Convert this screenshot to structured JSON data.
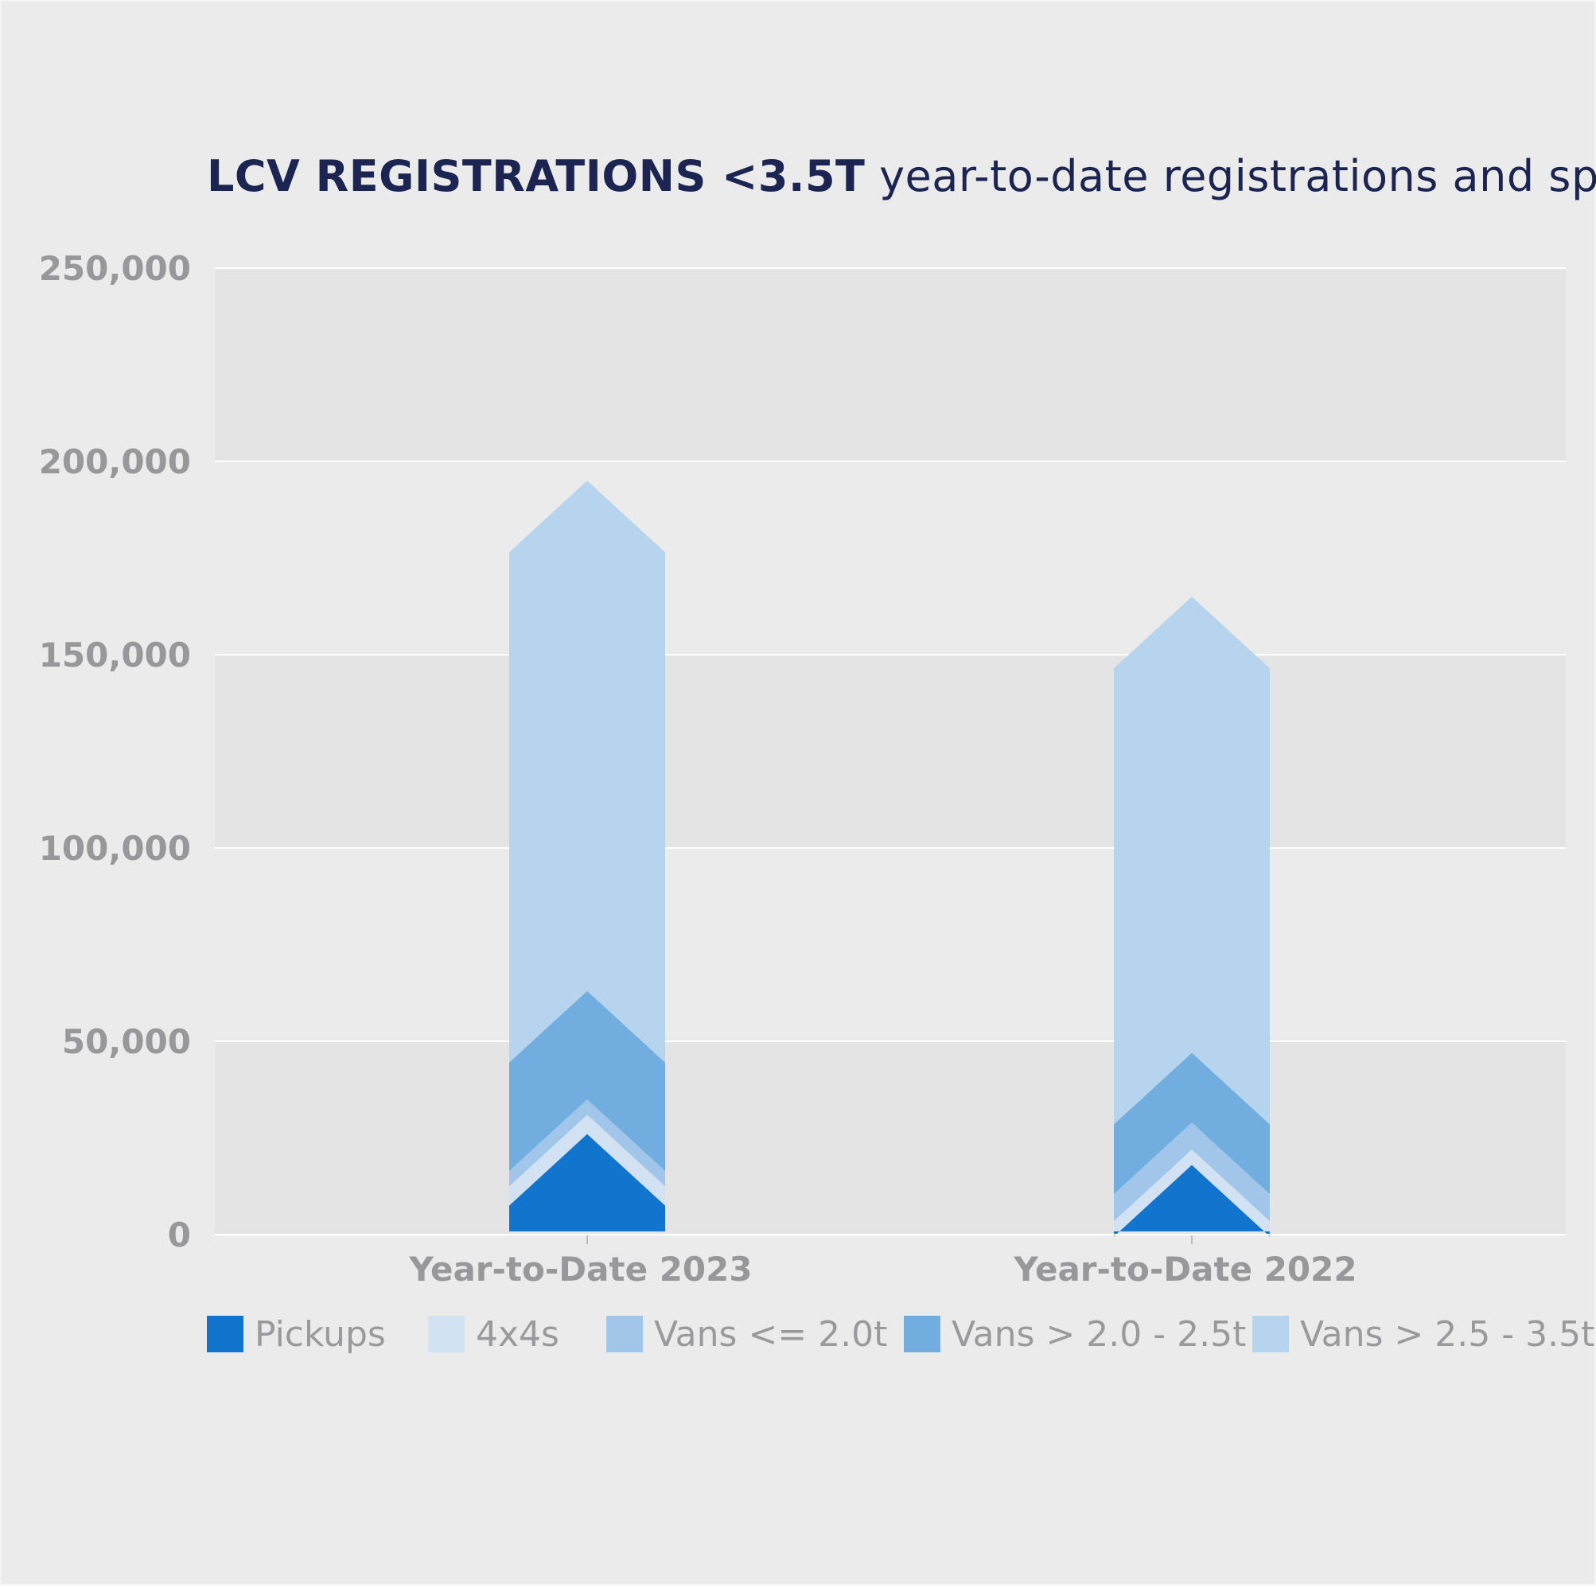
{
  "title": {
    "bold": "LCV REGISTRATIONS <3.5T",
    "regular": "year-to-date registrations and split"
  },
  "colors": {
    "background": "#ebebeb",
    "band": "#e4e4e4",
    "gridline": "#ffffff",
    "title": "#1c2452",
    "tick": "#98989b"
  },
  "legend_placement": "bottom",
  "chart_data": {
    "type": "bar",
    "stacked": true,
    "grid": true,
    "categories": [
      "Year-to-Date 2023",
      "Year-to-Date 2022"
    ],
    "y_ticks": [
      "0",
      "50,000",
      "100,000",
      "150,000",
      "200,000",
      "250,000"
    ],
    "ylim": [
      0,
      250000
    ],
    "series": [
      {
        "name": "Pickups",
        "color": "#1174cd",
        "values": [
          26000,
          18000
        ]
      },
      {
        "name": "4x4s",
        "color": "#d2e2f2",
        "values": [
          5000,
          4000
        ]
      },
      {
        "name": "Vans <= 2.0t",
        "color": "#a2c6e9",
        "values": [
          4000,
          7000
        ]
      },
      {
        "name": "Vans > 2.0 - 2.5t",
        "color": "#72ade0",
        "values": [
          28000,
          18000
        ]
      },
      {
        "name": "Vans > 2.5 - 3.5t",
        "color": "#b7d4ee",
        "values": [
          132000,
          118000
        ]
      }
    ]
  }
}
